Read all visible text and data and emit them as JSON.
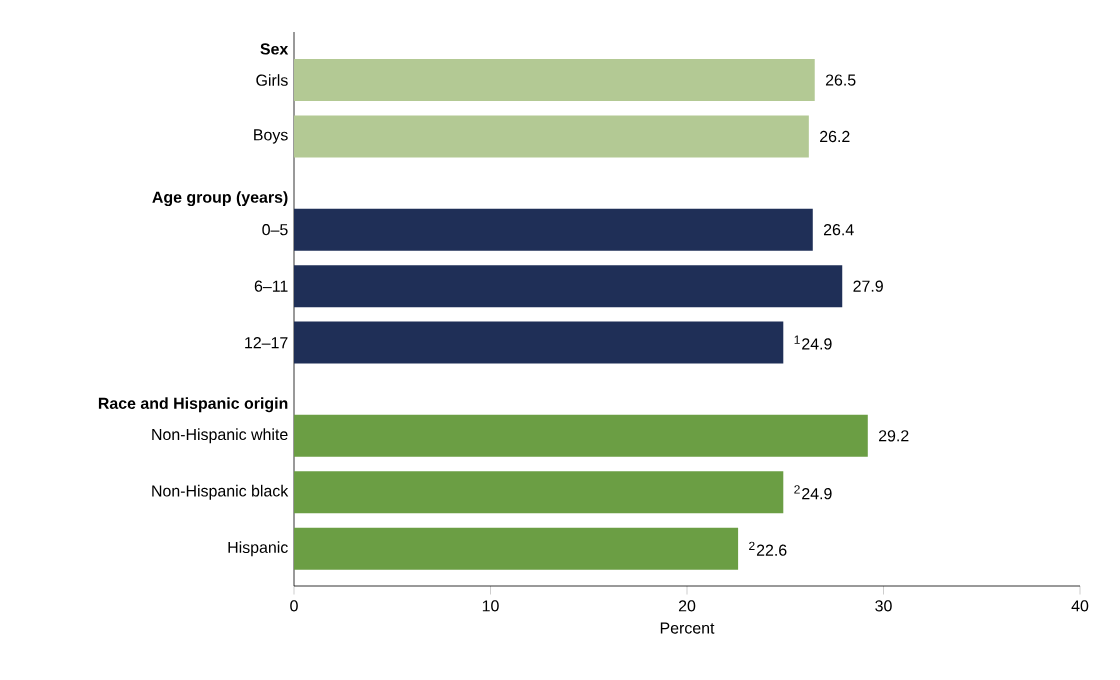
{
  "chart_data": {
    "type": "bar",
    "orientation": "horizontal",
    "xlabel": "Percent",
    "categories": [
      "Sex",
      "Girls",
      "Boys",
      "Age group (years)",
      "0–5",
      "6–11",
      "12–17",
      "Race and Hispanic origin",
      "Non-Hispanic white",
      "Non-Hispanic black",
      "Hispanic"
    ],
    "values": [
      null,
      26.5,
      26.2,
      null,
      26.4,
      27.9,
      24.9,
      null,
      29.2,
      24.9,
      22.6
    ],
    "colors": [
      null,
      "#b3c994",
      "#b3c994",
      null,
      "#1f2f57",
      "#1f2f57",
      "#1f2f57",
      null,
      "#6b9e44",
      "#6b9e44",
      "#6b9e44"
    ],
    "value_labels": [
      null,
      "26.5",
      "26.2",
      null,
      "26.4",
      "27.9",
      "$^{1}$24.9",
      null,
      "29.2",
      "$^{2}$24.9",
      "$^{2}$22.6"
    ],
    "xlim": [
      0,
      40
    ],
    "xticks": [
      0,
      10,
      20,
      30,
      40
    ],
    "grid": false
  }
}
